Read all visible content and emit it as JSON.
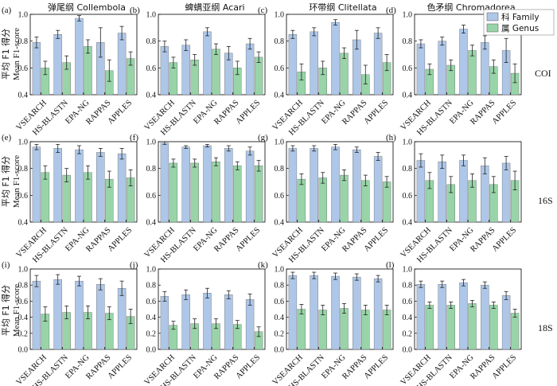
{
  "legend": {
    "family": "科 Family",
    "genus": "属 Genus",
    "placement": "top-right",
    "family_color": "#aec7e8",
    "genus_color": "#98d4a8"
  },
  "ylabel": {
    "cn": "平均 F1 得分",
    "en": "Mean F1-score"
  },
  "columns": [
    "弹尾纲 Collembola",
    "蜱螨亚纲 Acari",
    "环带纲 Clitellata",
    "色矛纲 Chromadorea"
  ],
  "rows": [
    "COI",
    "16S",
    "18S"
  ],
  "chart_data": [
    {
      "type": "bar",
      "panel": "(a)",
      "title": "弹尾纲 Collembola",
      "row": "COI",
      "categories": [
        "VSEARCH",
        "HS-BLASTN",
        "EPA-NG",
        "RAPPAS",
        "APPLES"
      ],
      "series": [
        {
          "name": "科 Family",
          "values": [
            0.79,
            0.85,
            0.97,
            0.79,
            0.86
          ],
          "errors": [
            0.04,
            0.03,
            0.02,
            0.11,
            0.05
          ]
        },
        {
          "name": "属 Genus",
          "values": [
            0.6,
            0.64,
            0.76,
            0.58,
            0.67
          ],
          "errors": [
            0.05,
            0.05,
            0.05,
            0.08,
            0.05
          ]
        }
      ],
      "ylim": [
        0.4,
        1.0
      ],
      "yticks": [
        0.4,
        0.6,
        0.8,
        1.0
      ]
    },
    {
      "type": "bar",
      "panel": "(b)",
      "title": "蜱螨亚纲 Acari",
      "row": "COI",
      "categories": [
        "VSEARCH",
        "HS-BLASTN",
        "EPA-NG",
        "RAPPAS",
        "APPLES"
      ],
      "series": [
        {
          "name": "科 Family",
          "values": [
            0.76,
            0.77,
            0.87,
            0.71,
            0.78
          ],
          "errors": [
            0.04,
            0.04,
            0.03,
            0.05,
            0.04
          ]
        },
        {
          "name": "属 Genus",
          "values": [
            0.64,
            0.66,
            0.74,
            0.6,
            0.68
          ],
          "errors": [
            0.04,
            0.04,
            0.04,
            0.05,
            0.04
          ]
        }
      ],
      "ylim": [
        0.4,
        1.0
      ],
      "yticks": [
        0.4,
        0.6,
        0.8,
        1.0
      ]
    },
    {
      "type": "bar",
      "panel": "(c)",
      "title": "环带纲 Clitellata",
      "row": "COI",
      "categories": [
        "VSEARCH",
        "HS-BLASTN",
        "EPA-NG",
        "RAPPAS",
        "APPLES"
      ],
      "series": [
        {
          "name": "科 Family",
          "values": [
            0.85,
            0.87,
            0.94,
            0.81,
            0.86
          ],
          "errors": [
            0.03,
            0.03,
            0.02,
            0.07,
            0.04
          ]
        },
        {
          "name": "属 Genus",
          "values": [
            0.57,
            0.6,
            0.71,
            0.55,
            0.64
          ],
          "errors": [
            0.06,
            0.05,
            0.04,
            0.07,
            0.06
          ]
        }
      ],
      "ylim": [
        0.4,
        1.0
      ],
      "yticks": [
        0.4,
        0.6,
        0.8,
        1.0
      ]
    },
    {
      "type": "bar",
      "panel": "(d)",
      "title": "色矛纲 Chromadorea",
      "row": "COI",
      "categories": [
        "VSEARCH",
        "HS-BLASTN",
        "EPA-NG",
        "RAPPAS",
        "APPLES"
      ],
      "series": [
        {
          "name": "科 Family",
          "values": [
            0.78,
            0.8,
            0.89,
            0.79,
            0.73
          ],
          "errors": [
            0.03,
            0.03,
            0.03,
            0.05,
            0.09
          ]
        },
        {
          "name": "属 Genus",
          "values": [
            0.59,
            0.62,
            0.73,
            0.61,
            0.56
          ],
          "errors": [
            0.04,
            0.04,
            0.04,
            0.05,
            0.07
          ]
        }
      ],
      "ylim": [
        0.4,
        1.0
      ],
      "yticks": [
        0.4,
        0.6,
        0.8,
        1.0
      ]
    },
    {
      "type": "bar",
      "panel": "(e)",
      "title": "",
      "row": "16S",
      "categories": [
        "VSEARCH",
        "HS-BLASTN",
        "EPA-NG",
        "RAPPAS",
        "APPLES"
      ],
      "series": [
        {
          "name": "科 Family",
          "values": [
            0.96,
            0.95,
            0.94,
            0.92,
            0.91
          ],
          "errors": [
            0.02,
            0.03,
            0.03,
            0.03,
            0.04
          ]
        },
        {
          "name": "属 Genus",
          "values": [
            0.77,
            0.75,
            0.77,
            0.72,
            0.73
          ],
          "errors": [
            0.05,
            0.05,
            0.05,
            0.06,
            0.06
          ]
        }
      ],
      "ylim": [
        0.4,
        1.0
      ],
      "yticks": [
        0.4,
        0.6,
        0.8,
        1.0
      ]
    },
    {
      "type": "bar",
      "panel": "(f)",
      "title": "",
      "row": "16S",
      "categories": [
        "VSEARCH",
        "HS-BLASTN",
        "EPA-NG",
        "RAPPAS",
        "APPLES"
      ],
      "series": [
        {
          "name": "科 Family",
          "values": [
            0.99,
            0.96,
            0.97,
            0.95,
            0.93
          ],
          "errors": [
            0.01,
            0.01,
            0.01,
            0.02,
            0.03
          ]
        },
        {
          "name": "属 Genus",
          "values": [
            0.84,
            0.84,
            0.85,
            0.82,
            0.82
          ],
          "errors": [
            0.03,
            0.03,
            0.03,
            0.03,
            0.04
          ]
        }
      ],
      "ylim": [
        0.4,
        1.0
      ],
      "yticks": [
        0.4,
        0.6,
        0.8,
        1.0
      ]
    },
    {
      "type": "bar",
      "panel": "(g)",
      "title": "",
      "row": "16S",
      "categories": [
        "VSEARCH",
        "HS-BLASTN",
        "EPA-NG",
        "RAPPAS",
        "APPLES"
      ],
      "series": [
        {
          "name": "科 Family",
          "values": [
            0.95,
            0.95,
            0.96,
            0.94,
            0.89
          ],
          "errors": [
            0.02,
            0.02,
            0.02,
            0.02,
            0.03
          ]
        },
        {
          "name": "属 Genus",
          "values": [
            0.72,
            0.73,
            0.75,
            0.71,
            0.7
          ],
          "errors": [
            0.04,
            0.04,
            0.04,
            0.04,
            0.04
          ]
        }
      ],
      "ylim": [
        0.4,
        1.0
      ],
      "yticks": [
        0.4,
        0.6,
        0.8,
        1.0
      ]
    },
    {
      "type": "bar",
      "panel": "(h)",
      "title": "",
      "row": "16S",
      "categories": [
        "VSEARCH",
        "HS-BLASTN",
        "EPA-NG",
        "RAPPAS",
        "APPLES"
      ],
      "series": [
        {
          "name": "科 Family",
          "values": [
            0.86,
            0.85,
            0.86,
            0.82,
            0.84
          ],
          "errors": [
            0.05,
            0.05,
            0.04,
            0.06,
            0.05
          ]
        },
        {
          "name": "属 Genus",
          "values": [
            0.71,
            0.68,
            0.71,
            0.68,
            0.71
          ],
          "errors": [
            0.06,
            0.06,
            0.05,
            0.06,
            0.07
          ]
        }
      ],
      "ylim": [
        0.4,
        1.0
      ],
      "yticks": [
        0.4,
        0.6,
        0.8,
        1.0
      ]
    },
    {
      "type": "bar",
      "panel": "(i)",
      "title": "",
      "row": "18S",
      "categories": [
        "VSEARCH",
        "HS-BLASTN",
        "EPA-NG",
        "RAPPAS",
        "APPLES"
      ],
      "series": [
        {
          "name": "科 Family",
          "values": [
            0.85,
            0.87,
            0.85,
            0.81,
            0.76
          ],
          "errors": [
            0.07,
            0.06,
            0.06,
            0.07,
            0.09
          ]
        },
        {
          "name": "属 Genus",
          "values": [
            0.44,
            0.46,
            0.46,
            0.45,
            0.41
          ],
          "errors": [
            0.09,
            0.08,
            0.08,
            0.08,
            0.09
          ]
        }
      ],
      "ylim": [
        0.0,
        1.0
      ],
      "yticks": [
        0.0,
        0.2,
        0.4,
        0.6,
        0.8,
        1.0
      ]
    },
    {
      "type": "bar",
      "panel": "(j)",
      "title": "",
      "row": "18S",
      "categories": [
        "VSEARCH",
        "HS-BLASTN",
        "EPA-NG",
        "RAPPAS",
        "APPLES"
      ],
      "series": [
        {
          "name": "科 Family",
          "values": [
            0.66,
            0.68,
            0.7,
            0.68,
            0.62
          ],
          "errors": [
            0.06,
            0.06,
            0.06,
            0.05,
            0.07
          ]
        },
        {
          "name": "属 Genus",
          "values": [
            0.3,
            0.32,
            0.32,
            0.31,
            0.22
          ],
          "errors": [
            0.05,
            0.06,
            0.06,
            0.05,
            0.06
          ]
        }
      ],
      "ylim": [
        0.0,
        1.0
      ],
      "yticks": [
        0.0,
        0.2,
        0.4,
        0.6,
        0.8,
        1.0
      ]
    },
    {
      "type": "bar",
      "panel": "(k)",
      "title": "",
      "row": "18S",
      "categories": [
        "VSEARCH",
        "HS-BLASTN",
        "EPA-NG",
        "RAPPAS",
        "APPLES"
      ],
      "series": [
        {
          "name": "科 Family",
          "values": [
            0.92,
            0.92,
            0.91,
            0.9,
            0.88
          ],
          "errors": [
            0.04,
            0.04,
            0.04,
            0.04,
            0.04
          ]
        },
        {
          "name": "属 Genus",
          "values": [
            0.5,
            0.49,
            0.51,
            0.49,
            0.49
          ],
          "errors": [
            0.06,
            0.06,
            0.06,
            0.06,
            0.06
          ]
        }
      ],
      "ylim": [
        0.0,
        1.0
      ],
      "yticks": [
        0.0,
        0.2,
        0.4,
        0.6,
        0.8,
        1.0
      ]
    },
    {
      "type": "bar",
      "panel": "(l)",
      "title": "",
      "row": "18S",
      "categories": [
        "VSEARCH",
        "HS-BLASTN",
        "EPA-NG",
        "RAPPAS",
        "APPLES"
      ],
      "series": [
        {
          "name": "科 Family",
          "values": [
            0.81,
            0.81,
            0.83,
            0.8,
            0.67
          ],
          "errors": [
            0.04,
            0.04,
            0.04,
            0.04,
            0.05
          ]
        },
        {
          "name": "属 Genus",
          "values": [
            0.55,
            0.55,
            0.57,
            0.55,
            0.45
          ],
          "errors": [
            0.04,
            0.04,
            0.04,
            0.04,
            0.05
          ]
        }
      ],
      "ylim": [
        0.0,
        1.0
      ],
      "yticks": [
        0.0,
        0.2,
        0.4,
        0.6,
        0.8,
        1.0
      ]
    }
  ]
}
